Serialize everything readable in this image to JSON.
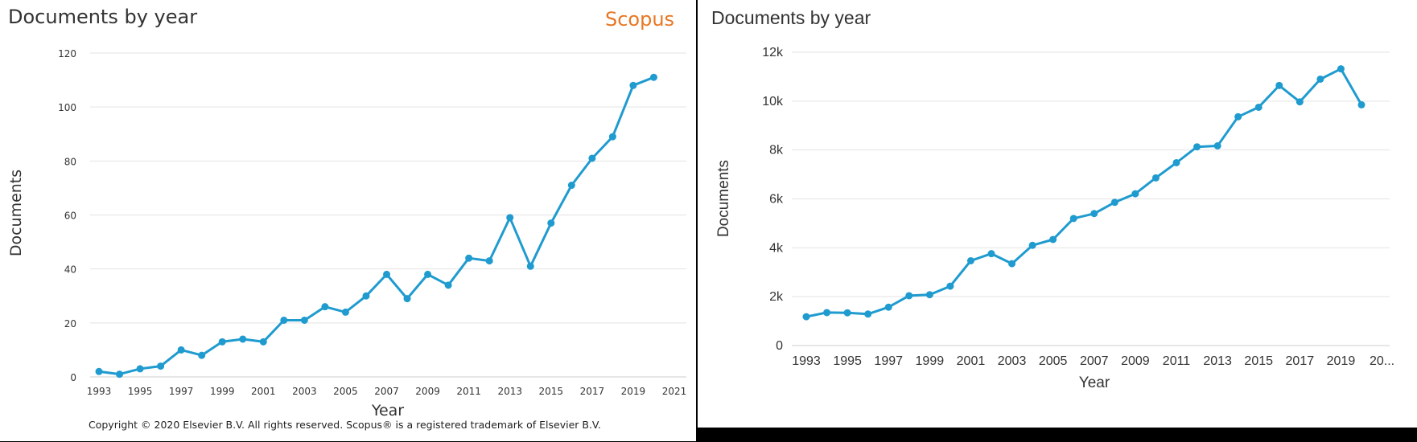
{
  "panels": [
    {
      "title": "Documents by year",
      "brand": "Scopus",
      "copyright": "Copyright © 2020 Elsevier B.V. All rights reserved. Scopus® is a registered trademark of Elsevier B.V."
    },
    {
      "title": "Documents by year"
    }
  ],
  "chart_data": [
    {
      "type": "line",
      "title": "Documents by year",
      "xlabel": "Year",
      "ylabel": "Documents",
      "xlim": [
        1993,
        2021
      ],
      "ylim": [
        0,
        120
      ],
      "grid": true,
      "line_color": "#1f9bcf",
      "x_ticks": [
        "1993",
        "1995",
        "1997",
        "1999",
        "2001",
        "2003",
        "2005",
        "2007",
        "2009",
        "2011",
        "2013",
        "2015",
        "2017",
        "2019",
        "2021"
      ],
      "y_ticks": [
        "0",
        "20",
        "40",
        "60",
        "80",
        "100",
        "120"
      ],
      "series": [
        {
          "x": [
            1993,
            1994,
            1995,
            1996,
            1997,
            1998,
            1999,
            2000,
            2001,
            2002,
            2003,
            2004,
            2005,
            2006,
            2007,
            2008,
            2009,
            2010,
            2011,
            2012,
            2013,
            2014,
            2015,
            2016,
            2017,
            2018,
            2019,
            2020
          ],
          "values": [
            2,
            1,
            3,
            4,
            10,
            8,
            13,
            14,
            13,
            21,
            21,
            26,
            24,
            30,
            38,
            29,
            38,
            34,
            44,
            43,
            59,
            41,
            57,
            71,
            81,
            89,
            108,
            111
          ]
        }
      ]
    },
    {
      "type": "line",
      "title": "Documents by year",
      "xlabel": "Year",
      "ylabel": "Documents",
      "xlim": [
        1993,
        2020
      ],
      "ylim": [
        0,
        12000
      ],
      "grid": true,
      "line_color": "#1f9bcf",
      "x_ticks": [
        "1993",
        "1995",
        "1997",
        "1999",
        "2001",
        "2003",
        "2005",
        "2007",
        "2009",
        "2011",
        "2013",
        "2015",
        "2017",
        "2019",
        "20..."
      ],
      "y_ticks": [
        "0",
        "2k",
        "4k",
        "6k",
        "8k",
        "10k",
        "12k"
      ],
      "series": [
        {
          "x": [
            1993,
            1994,
            1995,
            1996,
            1997,
            1998,
            1999,
            2000,
            2001,
            2002,
            2003,
            2004,
            2005,
            2006,
            2007,
            2008,
            2009,
            2010,
            2011,
            2012,
            2013,
            2014,
            2015,
            2016,
            2017,
            2018,
            2019,
            2020
          ],
          "values": [
            1180,
            1350,
            1340,
            1290,
            1570,
            2040,
            2080,
            2430,
            3470,
            3760,
            3350,
            4100,
            4340,
            5200,
            5400,
            5860,
            6210,
            6860,
            7480,
            8130,
            8170,
            9360,
            9750,
            10640,
            9970,
            10900,
            11320,
            9850
          ]
        }
      ]
    }
  ]
}
